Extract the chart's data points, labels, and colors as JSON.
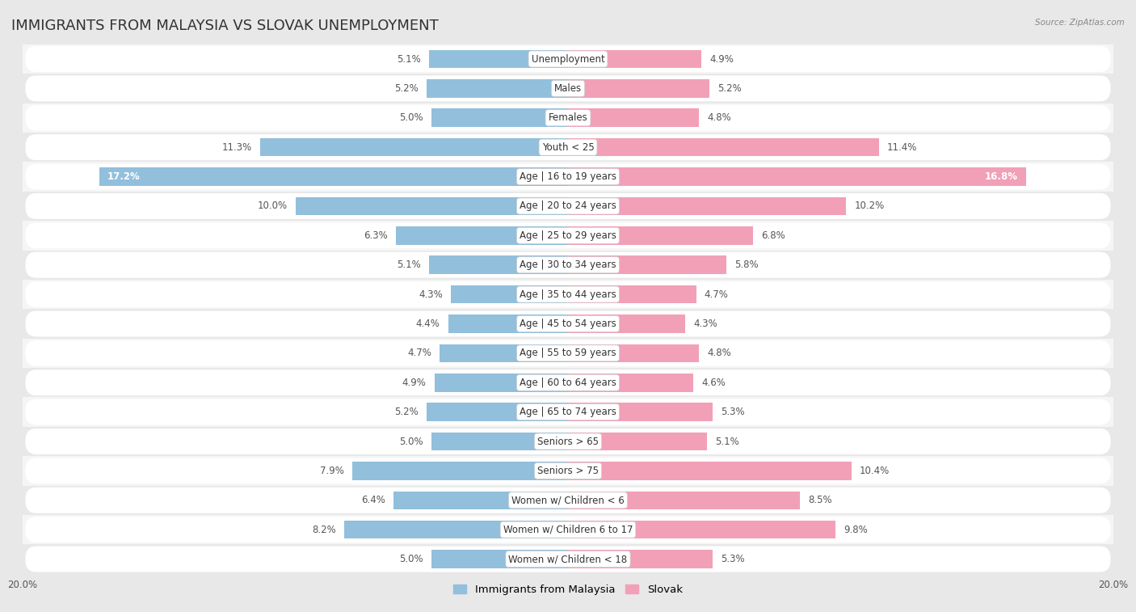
{
  "title": "IMMIGRANTS FROM MALAYSIA VS SLOVAK UNEMPLOYMENT",
  "source": "Source: ZipAtlas.com",
  "categories": [
    "Unemployment",
    "Males",
    "Females",
    "Youth < 25",
    "Age | 16 to 19 years",
    "Age | 20 to 24 years",
    "Age | 25 to 29 years",
    "Age | 30 to 34 years",
    "Age | 35 to 44 years",
    "Age | 45 to 54 years",
    "Age | 55 to 59 years",
    "Age | 60 to 64 years",
    "Age | 65 to 74 years",
    "Seniors > 65",
    "Seniors > 75",
    "Women w/ Children < 6",
    "Women w/ Children 6 to 17",
    "Women w/ Children < 18"
  ],
  "left_values": [
    5.1,
    5.2,
    5.0,
    11.3,
    17.2,
    10.0,
    6.3,
    5.1,
    4.3,
    4.4,
    4.7,
    4.9,
    5.2,
    5.0,
    7.9,
    6.4,
    8.2,
    5.0
  ],
  "right_values": [
    4.9,
    5.2,
    4.8,
    11.4,
    16.8,
    10.2,
    6.8,
    5.8,
    4.7,
    4.3,
    4.8,
    4.6,
    5.3,
    5.1,
    10.4,
    8.5,
    9.8,
    5.3
  ],
  "left_color": "#92bfdc",
  "right_color": "#f2a0b8",
  "bar_height": 0.62,
  "xlim": 20.0,
  "fig_bg_color": "#e8e8e8",
  "row_light_color": "#f5f5f5",
  "row_dark_color": "#e8e8e8",
  "row_pill_color": "#ffffff",
  "value_inside_color": "#ffffff",
  "value_outside_color": "#555555",
  "inside_threshold": 15.0,
  "legend_left": "Immigrants from Malaysia",
  "legend_right": "Slovak",
  "title_fontsize": 13,
  "label_fontsize": 8.5,
  "value_fontsize": 8.5,
  "axis_label_fontsize": 8.5,
  "axis_tick_color": "#555555"
}
